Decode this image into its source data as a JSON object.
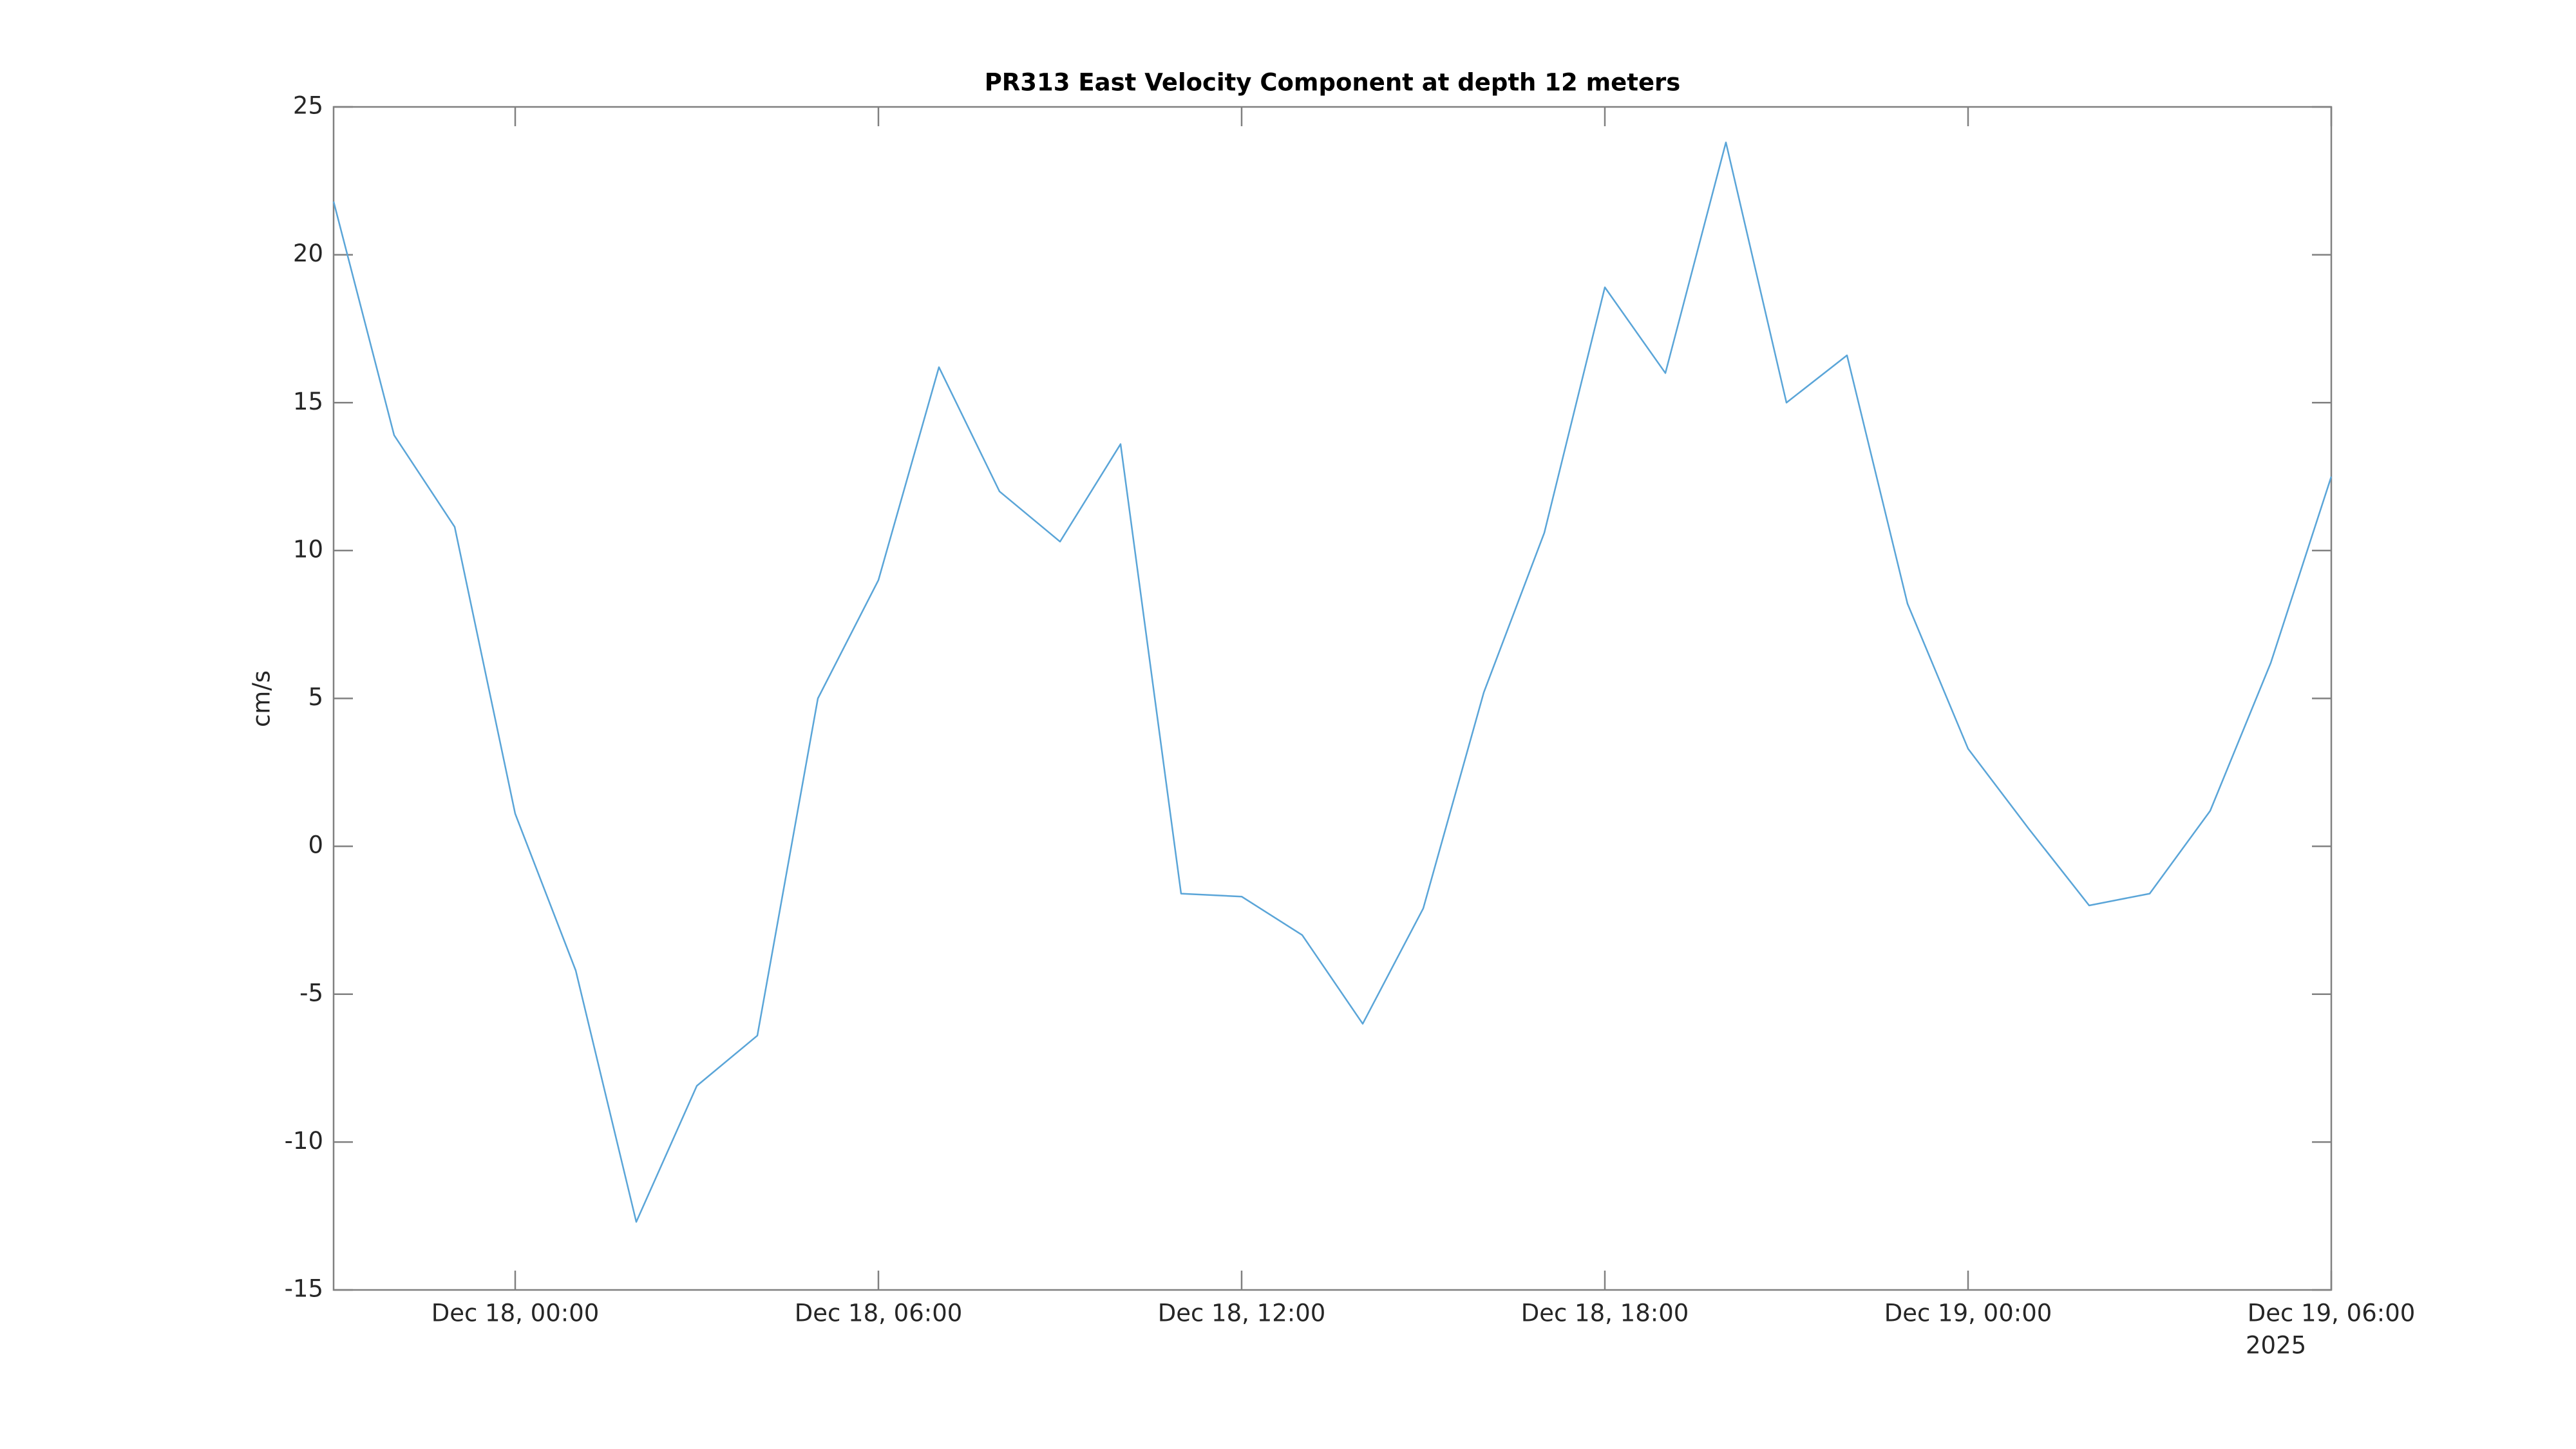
{
  "chart_data": {
    "type": "line",
    "title": "PR313 East Velocity Component at depth 12 meters",
    "y_label": "cm/s",
    "x_axis_year": "2025",
    "x": [
      "2025-12-17T21:00",
      "2025-12-17T22:00",
      "2025-12-17T23:00",
      "2025-12-18T00:00",
      "2025-12-18T01:00",
      "2025-12-18T02:00",
      "2025-12-18T03:00",
      "2025-12-18T04:00",
      "2025-12-18T05:00",
      "2025-12-18T06:00",
      "2025-12-18T07:00",
      "2025-12-18T08:00",
      "2025-12-18T09:00",
      "2025-12-18T10:00",
      "2025-12-18T11:00",
      "2025-12-18T12:00",
      "2025-12-18T13:00",
      "2025-12-18T14:00",
      "2025-12-18T15:00",
      "2025-12-18T16:00",
      "2025-12-18T17:00",
      "2025-12-18T18:00",
      "2025-12-18T19:00",
      "2025-12-18T20:00",
      "2025-12-18T21:00",
      "2025-12-18T22:00",
      "2025-12-18T23:00",
      "2025-12-19T00:00",
      "2025-12-19T01:00",
      "2025-12-19T02:00",
      "2025-12-19T03:00",
      "2025-12-19T04:00",
      "2025-12-19T05:00",
      "2025-12-19T06:00"
    ],
    "series": [
      {
        "name": "East Velocity",
        "color": "#5aa5d8",
        "values": [
          21.8,
          13.9,
          10.8,
          1.1,
          -4.2,
          -12.7,
          -8.1,
          -6.4,
          5.0,
          9.0,
          16.2,
          12.0,
          10.3,
          13.6,
          -1.6,
          -1.7,
          -3.0,
          -6.0,
          -2.1,
          5.2,
          10.6,
          18.9,
          16.0,
          23.8,
          15.0,
          16.6,
          8.2,
          3.3,
          0.6,
          -2.0,
          -1.6,
          1.2,
          6.2,
          12.5
        ]
      }
    ],
    "xlim": [
      "2025-12-17T21:00",
      "2025-12-19T06:00"
    ],
    "xticks": [
      {
        "value": "2025-12-18T00:00",
        "label": "Dec 18, 00:00"
      },
      {
        "value": "2025-12-18T06:00",
        "label": "Dec 18, 06:00"
      },
      {
        "value": "2025-12-18T12:00",
        "label": "Dec 18, 12:00"
      },
      {
        "value": "2025-12-18T18:00",
        "label": "Dec 18, 18:00"
      },
      {
        "value": "2025-12-19T00:00",
        "label": "Dec 19, 00:00"
      },
      {
        "value": "2025-12-19T06:00",
        "label": "Dec 19, 06:00"
      }
    ],
    "ylim": [
      -15,
      25
    ],
    "yticks": [
      -15,
      -10,
      -5,
      0,
      5,
      10,
      15,
      20,
      25
    ],
    "grid": false
  }
}
